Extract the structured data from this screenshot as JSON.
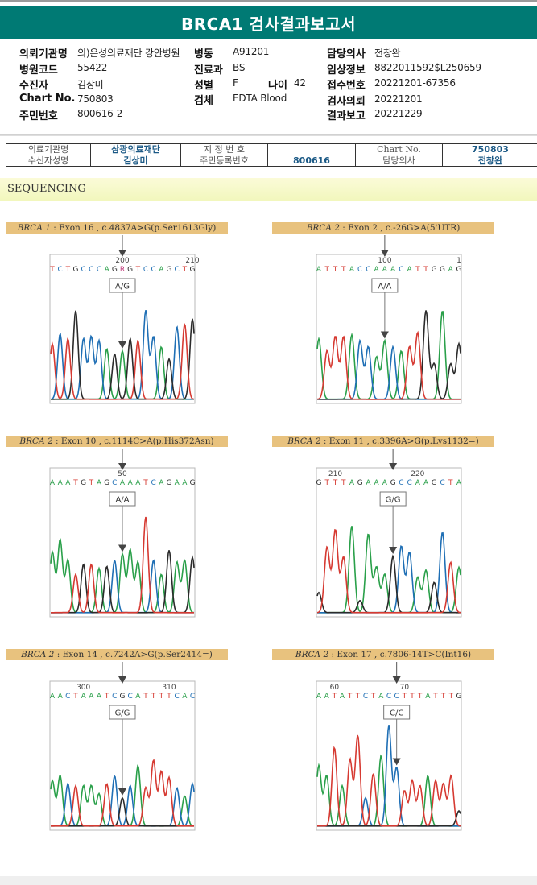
{
  "report": {
    "title": "BRCA1 검사결과보고서",
    "accent_color": "#007a74"
  },
  "patient_info": {
    "institution_label": "의뢰기관명",
    "institution_value": "의)은성의료재단 강안병원",
    "ward_label": "병동",
    "ward_value": "A91201",
    "doctor_label": "담당의사",
    "doctor_value": "전창완",
    "hospital_code_label": "병원코드",
    "hospital_code_value": "55422",
    "dept_label": "진료과",
    "dept_value": "BS",
    "clinical_info_label": "임상정보",
    "clinical_info_value": "8822011592$L250659",
    "recipient_label": "수진자",
    "recipient_value": "김상미",
    "sex_label": "성별",
    "sex_value": "F",
    "age_label": "나이",
    "age_value": "42",
    "receipt_no_label": "접수번호",
    "receipt_no_value": "20221201-67356",
    "chart_no_label": "Chart No.",
    "chart_no_value": "750803",
    "specimen_label": "검체",
    "specimen_value": "EDTA Blood",
    "request_date_label": "검사의뢰",
    "request_date_value": "20221201",
    "resident_no_label": "주민번호",
    "resident_no_value": "800616-2",
    "report_date_label": "결과보고",
    "report_date_value": "20221229"
  },
  "meta_table": {
    "rows": [
      [
        "의료기관명",
        "삼광의료재단",
        "지 정 번 호",
        "",
        "Chart No.",
        "750803"
      ],
      [
        "수신자성명",
        "김상미",
        "주민등록번호",
        "800616",
        "담당의사",
        "전창완"
      ]
    ]
  },
  "section": {
    "title": "SEQUENCING"
  },
  "base_colors": {
    "A": "#2aa04a",
    "C": "#1f6fb5",
    "G": "#2b2b2b",
    "T": "#d63a32"
  },
  "variants": [
    {
      "gene": "BRCA 1",
      "detail": " : Exon 16 , c.4837A>G(p.Ser1613Gly)",
      "sequence": "TCTGCCCAGRGTCCAGCTG",
      "pos_labels": [
        {
          "text": "200",
          "index": 9
        },
        {
          "text": "210",
          "index": 18
        }
      ],
      "genotype": "A/G",
      "marker_index": 9,
      "peaks": [
        "T:0.55",
        "C:0.65",
        "T:0.6",
        "G:0.88",
        "C:0.6",
        "C:0.62",
        "C:0.58",
        "A:0.5",
        "G:0.45",
        "A:0.48",
        "G:0.6",
        "T:0.58",
        "C:0.88",
        "C:0.62",
        "A:0.52",
        "G:0.4",
        "C:0.72",
        "T:0.75",
        "G:0.8"
      ]
    },
    {
      "gene": "BRCA 2",
      "detail": " : Exon 2 , c.-26G>A(5'UTR)",
      "sequence": "ATTTACCAAACATTGGAG",
      "pos_labels": [
        {
          "text": "100",
          "index": 8
        },
        {
          "text": "1",
          "index": 17
        }
      ],
      "genotype": "A/A",
      "marker_index": 8,
      "peaks": [
        "A:0.6",
        "T:0.48",
        "T:0.62",
        "T:0.62",
        "A:0.64",
        "C:0.58",
        "C:0.52",
        "A:0.42",
        "A:0.58",
        "C:0.52",
        "A:0.48",
        "T:0.52",
        "T:0.66",
        "G:0.88",
        "G:0.35",
        "A:0.88",
        "G:0.35",
        "G:0.55"
      ]
    },
    {
      "gene": "BRCA 2",
      "detail": " : Exon 10 , c.1114C>A(p.His372Asn)",
      "sequence": "AAATGTAGCAAATCAGAAG",
      "pos_labels": [
        {
          "text": "50",
          "index": 9
        }
      ],
      "genotype": "A/A",
      "marker_index": 9,
      "peaks": [
        "A:0.6",
        "A:0.72",
        "A:0.52",
        "T:0.38",
        "G:0.48",
        "T:0.48",
        "A:0.44",
        "G:0.46",
        "C:0.52",
        "A:0.58",
        "A:0.62",
        "A:0.5",
        "T:0.95",
        "C:0.52",
        "A:0.38",
        "G:0.62",
        "A:0.5",
        "A:0.52",
        "G:0.55"
      ]
    },
    {
      "gene": "BRCA 2",
      "detail": " : Exon 11 , c.3396A>G(p.Lys1132=)",
      "sequence": "GTTTAGAAAGCCAAGCTA",
      "pos_labels": [
        {
          "text": "210",
          "index": 2
        },
        {
          "text": "220",
          "index": 12
        }
      ],
      "genotype": "G/G",
      "marker_index": 9,
      "peaks": [
        "G:0.2",
        "T:0.65",
        "T:0.82",
        "T:0.55",
        "A:0.86",
        "G:0.12",
        "A:0.78",
        "A:0.45",
        "A:0.38",
        "G:0.56",
        "C:0.66",
        "C:0.6",
        "A:0.35",
        "A:0.42",
        "G:0.3",
        "C:0.8",
        "T:0.5",
        "A:0.45"
      ]
    },
    {
      "gene": "BRCA 2",
      "detail": " : Exon 14 , c.7242A>G(p.Ser2414=)",
      "sequence": "AACTAAATCGCATTTTCAC",
      "pos_labels": [
        {
          "text": "300",
          "index": 4
        },
        {
          "text": "310",
          "index": 15
        }
      ],
      "genotype": "G/G",
      "marker_index": 9,
      "peaks": [
        "A:0.45",
        "A:0.5",
        "C:0.42",
        "T:0.4",
        "A:0.4",
        "A:0.4",
        "A:0.32",
        "T:0.42",
        "C:0.5",
        "G:0.28",
        "C:0.4",
        "A:0.6",
        "T:0.38",
        "T:0.65",
        "T:0.54",
        "T:0.48",
        "C:0.38",
        "A:0.3",
        "C:0.42"
      ]
    },
    {
      "gene": "BRCA 2",
      "detail": " : Exon 17 , c.7806-14T>C(Int16)",
      "sequence": "AATATTCTACCTTTATTTG",
      "pos_labels": [
        {
          "text": "60",
          "index": 2
        },
        {
          "text": "70",
          "index": 11
        }
      ],
      "genotype": "C/C",
      "marker_index": 10,
      "peaks": [
        "A:0.6",
        "A:0.5",
        "T:0.78",
        "A:0.4",
        "T:0.66",
        "T:0.9",
        "C:0.28",
        "T:0.52",
        "A:0.7",
        "C:1.0",
        "C:0.58",
        "T:0.35",
        "T:0.45",
        "T:0.4",
        "A:0.5",
        "T:0.45",
        "T:0.42",
        "T:0.5",
        "G:0.15"
      ]
    }
  ]
}
